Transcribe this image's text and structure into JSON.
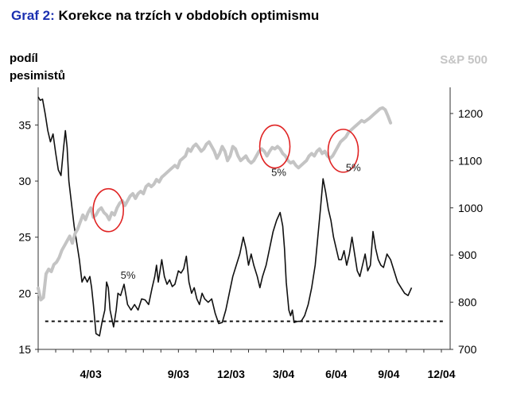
{
  "title": {
    "lead": "Graf 2:",
    "rest": "Korekce na trzích v obdobích optimismu"
  },
  "colors": {
    "title_lead": "#1a2fb0",
    "pessimists_line": "#111111",
    "sp500_line": "#c4c4c4",
    "circle": "#e02424",
    "reference_line": "#111111"
  },
  "chart_data": {
    "type": "line",
    "left_axis": {
      "label_line1": "podíl",
      "label_line2": "pesimistů",
      "ticks": [
        15,
        20,
        25,
        30,
        35
      ],
      "range": [
        15,
        38
      ]
    },
    "right_axis": {
      "label": "S&P 500",
      "ticks": [
        700,
        800,
        900,
        1000,
        1100,
        1200
      ],
      "range": [
        700,
        1247
      ]
    },
    "x_axis": {
      "range": [
        0,
        23.5
      ],
      "ticks": [
        {
          "label": "4/03",
          "x": 3
        },
        {
          "label": "9/03",
          "x": 8
        },
        {
          "label": "12/03",
          "x": 11
        },
        {
          "label": "3/04",
          "x": 14
        },
        {
          "label": "6/04",
          "x": 17
        },
        {
          "label": "9/04",
          "x": 20
        },
        {
          "label": "12/04",
          "x": 23
        }
      ]
    },
    "reference_value": 17.5,
    "series": [
      {
        "axis": "left",
        "points": [
          [
            0,
            37.5
          ],
          [
            0.12,
            37.2
          ],
          [
            0.25,
            37.3
          ],
          [
            0.4,
            36
          ],
          [
            0.55,
            34.5
          ],
          [
            0.7,
            33.5
          ],
          [
            0.85,
            34.2
          ],
          [
            1.0,
            32.5
          ],
          [
            1.15,
            31
          ],
          [
            1.3,
            30.5
          ],
          [
            1.45,
            33
          ],
          [
            1.55,
            34.5
          ],
          [
            1.65,
            33
          ],
          [
            1.75,
            30
          ],
          [
            1.9,
            28
          ],
          [
            2.05,
            26
          ],
          [
            2.2,
            24.5
          ],
          [
            2.35,
            23
          ],
          [
            2.5,
            21
          ],
          [
            2.65,
            21.5
          ],
          [
            2.8,
            21
          ],
          [
            2.95,
            21.5
          ],
          [
            3.05,
            20.5
          ],
          [
            3.15,
            19
          ],
          [
            3.3,
            16.4
          ],
          [
            3.5,
            16.2
          ],
          [
            3.65,
            17.5
          ],
          [
            3.8,
            18.5
          ],
          [
            3.9,
            21
          ],
          [
            4.0,
            20.5
          ],
          [
            4.1,
            18.5
          ],
          [
            4.3,
            17
          ],
          [
            4.45,
            18.5
          ],
          [
            4.55,
            20
          ],
          [
            4.7,
            19.8
          ],
          [
            4.9,
            20.8
          ],
          [
            5.1,
            19
          ],
          [
            5.3,
            18.5
          ],
          [
            5.5,
            19
          ],
          [
            5.7,
            18.5
          ],
          [
            5.9,
            19.5
          ],
          [
            6.1,
            19.4
          ],
          [
            6.3,
            19
          ],
          [
            6.5,
            20.5
          ],
          [
            6.65,
            21.5
          ],
          [
            6.75,
            22.5
          ],
          [
            6.85,
            21
          ],
          [
            6.95,
            22
          ],
          [
            7.05,
            23
          ],
          [
            7.2,
            21.5
          ],
          [
            7.35,
            20.8
          ],
          [
            7.5,
            21.2
          ],
          [
            7.65,
            20.6
          ],
          [
            7.8,
            20.8
          ],
          [
            8.0,
            22
          ],
          [
            8.15,
            21.8
          ],
          [
            8.3,
            22.2
          ],
          [
            8.45,
            23.3
          ],
          [
            8.6,
            21
          ],
          [
            8.75,
            20
          ],
          [
            8.9,
            20.5
          ],
          [
            9.05,
            19.5
          ],
          [
            9.2,
            19
          ],
          [
            9.35,
            20
          ],
          [
            9.5,
            19.5
          ],
          [
            9.7,
            19.2
          ],
          [
            9.9,
            19.5
          ],
          [
            10.1,
            18.2
          ],
          [
            10.3,
            17.3
          ],
          [
            10.5,
            17.4
          ],
          [
            10.7,
            18.5
          ],
          [
            10.9,
            20
          ],
          [
            11.1,
            21.5
          ],
          [
            11.3,
            22.5
          ],
          [
            11.5,
            23.5
          ],
          [
            11.7,
            25
          ],
          [
            11.85,
            24
          ],
          [
            12.0,
            22.5
          ],
          [
            12.15,
            23.5
          ],
          [
            12.3,
            22.5
          ],
          [
            12.5,
            21.5
          ],
          [
            12.65,
            20.5
          ],
          [
            12.8,
            21.5
          ],
          [
            13.0,
            22.5
          ],
          [
            13.2,
            24
          ],
          [
            13.4,
            25.5
          ],
          [
            13.6,
            26.5
          ],
          [
            13.8,
            27.2
          ],
          [
            13.95,
            26
          ],
          [
            14.05,
            24
          ],
          [
            14.15,
            21
          ],
          [
            14.3,
            18.5
          ],
          [
            14.4,
            18
          ],
          [
            14.5,
            18.5
          ],
          [
            14.6,
            17.4
          ],
          [
            14.8,
            17.5
          ],
          [
            15.0,
            17.5
          ],
          [
            15.2,
            18
          ],
          [
            15.4,
            19
          ],
          [
            15.6,
            20.5
          ],
          [
            15.8,
            22.5
          ],
          [
            15.95,
            25
          ],
          [
            16.1,
            27.5
          ],
          [
            16.25,
            30.2
          ],
          [
            16.4,
            29
          ],
          [
            16.55,
            27.5
          ],
          [
            16.7,
            26.5
          ],
          [
            16.85,
            25
          ],
          [
            17.0,
            24
          ],
          [
            17.15,
            23
          ],
          [
            17.3,
            23
          ],
          [
            17.45,
            23.8
          ],
          [
            17.6,
            22.5
          ],
          [
            17.75,
            23.5
          ],
          [
            17.9,
            25
          ],
          [
            18.05,
            23.5
          ],
          [
            18.2,
            22
          ],
          [
            18.35,
            21.5
          ],
          [
            18.5,
            22.5
          ],
          [
            18.65,
            23.5
          ],
          [
            18.8,
            22
          ],
          [
            18.95,
            22.5
          ],
          [
            19.1,
            25.5
          ],
          [
            19.25,
            24
          ],
          [
            19.4,
            23
          ],
          [
            19.55,
            22.5
          ],
          [
            19.7,
            22.3
          ],
          [
            19.9,
            23.5
          ],
          [
            20.1,
            23
          ],
          [
            20.3,
            22
          ],
          [
            20.5,
            21
          ],
          [
            20.7,
            20.5
          ],
          [
            20.9,
            20
          ],
          [
            21.1,
            19.8
          ],
          [
            21.3,
            20.5
          ]
        ]
      },
      {
        "axis": "right",
        "points": [
          [
            0,
            830
          ],
          [
            0.15,
            805
          ],
          [
            0.3,
            810
          ],
          [
            0.45,
            860
          ],
          [
            0.6,
            870
          ],
          [
            0.75,
            865
          ],
          [
            0.9,
            880
          ],
          [
            1.05,
            885
          ],
          [
            1.2,
            895
          ],
          [
            1.35,
            910
          ],
          [
            1.5,
            920
          ],
          [
            1.65,
            930
          ],
          [
            1.8,
            940
          ],
          [
            1.95,
            925
          ],
          [
            2.1,
            945
          ],
          [
            2.25,
            955
          ],
          [
            2.4,
            970
          ],
          [
            2.55,
            985
          ],
          [
            2.7,
            975
          ],
          [
            2.85,
            990
          ],
          [
            3.0,
            1000
          ],
          [
            3.15,
            980
          ],
          [
            3.3,
            985
          ],
          [
            3.45,
            995
          ],
          [
            3.6,
            1000
          ],
          [
            3.75,
            990
          ],
          [
            3.9,
            985
          ],
          [
            4.05,
            975
          ],
          [
            4.2,
            990
          ],
          [
            4.35,
            985
          ],
          [
            4.5,
            1000
          ],
          [
            4.65,
            1010
          ],
          [
            4.8,
            1015
          ],
          [
            4.95,
            1005
          ],
          [
            5.1,
            1015
          ],
          [
            5.25,
            1025
          ],
          [
            5.4,
            1030
          ],
          [
            5.55,
            1020
          ],
          [
            5.7,
            1030
          ],
          [
            5.85,
            1035
          ],
          [
            6.0,
            1030
          ],
          [
            6.15,
            1045
          ],
          [
            6.3,
            1050
          ],
          [
            6.45,
            1045
          ],
          [
            6.6,
            1050
          ],
          [
            6.75,
            1060
          ],
          [
            6.9,
            1055
          ],
          [
            7.05,
            1065
          ],
          [
            7.2,
            1070
          ],
          [
            7.35,
            1075
          ],
          [
            7.5,
            1080
          ],
          [
            7.65,
            1085
          ],
          [
            7.8,
            1090
          ],
          [
            7.95,
            1085
          ],
          [
            8.1,
            1100
          ],
          [
            8.25,
            1105
          ],
          [
            8.4,
            1110
          ],
          [
            8.55,
            1125
          ],
          [
            8.7,
            1120
          ],
          [
            8.85,
            1130
          ],
          [
            9.0,
            1135
          ],
          [
            9.15,
            1128
          ],
          [
            9.3,
            1120
          ],
          [
            9.45,
            1125
          ],
          [
            9.6,
            1135
          ],
          [
            9.75,
            1140
          ],
          [
            9.9,
            1130
          ],
          [
            10.05,
            1120
          ],
          [
            10.2,
            1105
          ],
          [
            10.35,
            1115
          ],
          [
            10.5,
            1130
          ],
          [
            10.65,
            1120
          ],
          [
            10.8,
            1100
          ],
          [
            10.95,
            1110
          ],
          [
            11.1,
            1130
          ],
          [
            11.25,
            1125
          ],
          [
            11.4,
            1110
          ],
          [
            11.55,
            1100
          ],
          [
            11.7,
            1105
          ],
          [
            11.85,
            1110
          ],
          [
            12.0,
            1100
          ],
          [
            12.15,
            1095
          ],
          [
            12.3,
            1100
          ],
          [
            12.45,
            1110
          ],
          [
            12.6,
            1120
          ],
          [
            12.75,
            1125
          ],
          [
            12.9,
            1120
          ],
          [
            13.05,
            1110
          ],
          [
            13.2,
            1120
          ],
          [
            13.35,
            1128
          ],
          [
            13.5,
            1125
          ],
          [
            13.65,
            1130
          ],
          [
            13.8,
            1125
          ],
          [
            13.95,
            1115
          ],
          [
            14.1,
            1110
          ],
          [
            14.25,
            1100
          ],
          [
            14.4,
            1095
          ],
          [
            14.55,
            1098
          ],
          [
            14.7,
            1090
          ],
          [
            14.85,
            1085
          ],
          [
            15.0,
            1090
          ],
          [
            15.15,
            1095
          ],
          [
            15.3,
            1100
          ],
          [
            15.45,
            1110
          ],
          [
            15.6,
            1115
          ],
          [
            15.75,
            1110
          ],
          [
            15.9,
            1120
          ],
          [
            16.05,
            1125
          ],
          [
            16.2,
            1115
          ],
          [
            16.35,
            1120
          ],
          [
            16.5,
            1110
          ],
          [
            16.65,
            1105
          ],
          [
            16.8,
            1110
          ],
          [
            16.95,
            1120
          ],
          [
            17.1,
            1130
          ],
          [
            17.25,
            1140
          ],
          [
            17.4,
            1145
          ],
          [
            17.55,
            1150
          ],
          [
            17.7,
            1160
          ],
          [
            17.85,
            1165
          ],
          [
            18.0,
            1170
          ],
          [
            18.15,
            1175
          ],
          [
            18.3,
            1180
          ],
          [
            18.45,
            1185
          ],
          [
            18.6,
            1182
          ],
          [
            18.75,
            1186
          ],
          [
            18.9,
            1190
          ],
          [
            19.05,
            1195
          ],
          [
            19.2,
            1200
          ],
          [
            19.35,
            1205
          ],
          [
            19.5,
            1210
          ],
          [
            19.65,
            1212
          ],
          [
            19.8,
            1208
          ],
          [
            19.95,
            1195
          ],
          [
            20.1,
            1180
          ]
        ]
      }
    ],
    "annotations": [
      {
        "text": "5%",
        "x": 4.7,
        "y": 850
      },
      {
        "text": "5%",
        "x": 13.3,
        "y": 1068
      },
      {
        "text": "5%",
        "x": 17.55,
        "y": 1078
      }
    ],
    "highlight_circles": [
      {
        "x": 4.0,
        "y": 995
      },
      {
        "x": 13.5,
        "y": 1130
      },
      {
        "x": 17.4,
        "y": 1121
      }
    ]
  }
}
